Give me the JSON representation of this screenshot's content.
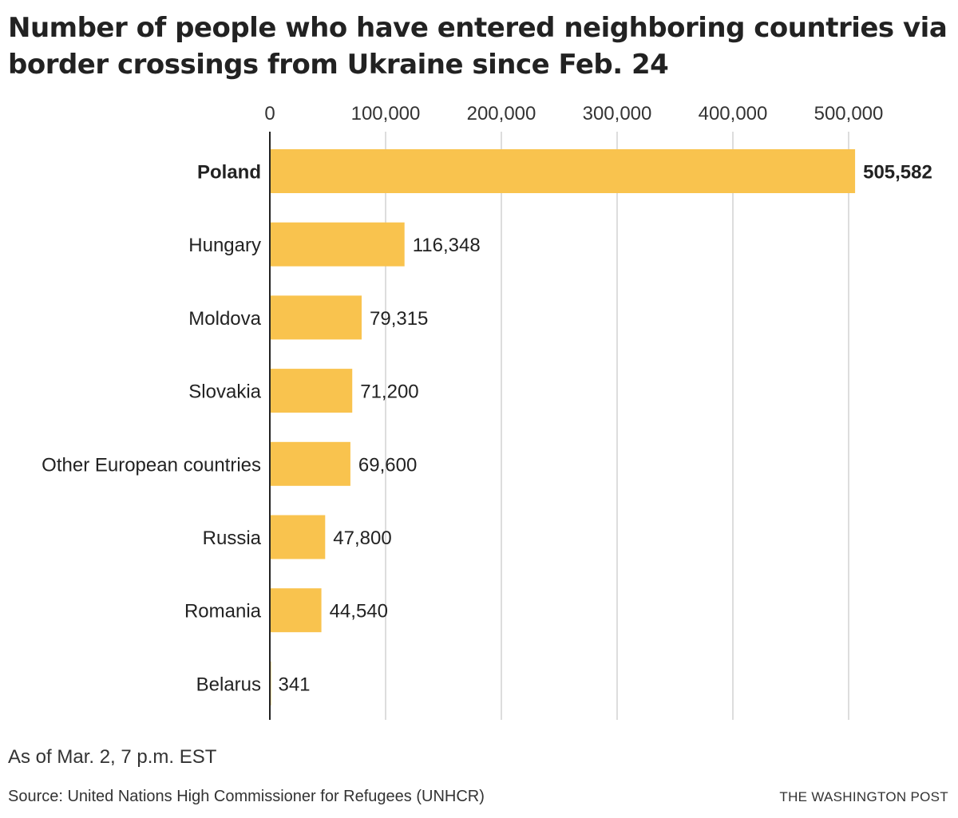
{
  "chart_data": {
    "type": "bar",
    "orientation": "horizontal",
    "title": "Number of people who have entered neighboring countries via border crossings from Ukraine since Feb. 24",
    "categories": [
      "Poland",
      "Hungary",
      "Moldova",
      "Slovakia",
      "Other European countries",
      "Russia",
      "Romania",
      "Belarus"
    ],
    "values": [
      505582,
      116348,
      79315,
      71200,
      69600,
      47800,
      44540,
      341
    ],
    "value_labels": [
      "505,582",
      "116,348",
      "79,315",
      "71,200",
      "69,600",
      "47,800",
      "44,540",
      "341"
    ],
    "highlighted_category": "Poland",
    "xlim": [
      0,
      505582
    ],
    "xticks": [
      0,
      100000,
      200000,
      300000,
      400000,
      500000
    ],
    "xtick_labels": [
      "0",
      "100,000",
      "200,000",
      "300,000",
      "400,000",
      "500,000"
    ],
    "axis_position": "top",
    "grid": true,
    "xlabel": "",
    "ylabel": "",
    "colors": {
      "bar": "#F9C34E",
      "grid": "#DDDDDD",
      "axis": "#222222"
    }
  },
  "footer": {
    "note": "As of Mar. 2, 7 p.m. EST",
    "source": "Source: United Nations High Commissioner for Refugees (UNHCR)",
    "credit": "THE WASHINGTON POST"
  }
}
